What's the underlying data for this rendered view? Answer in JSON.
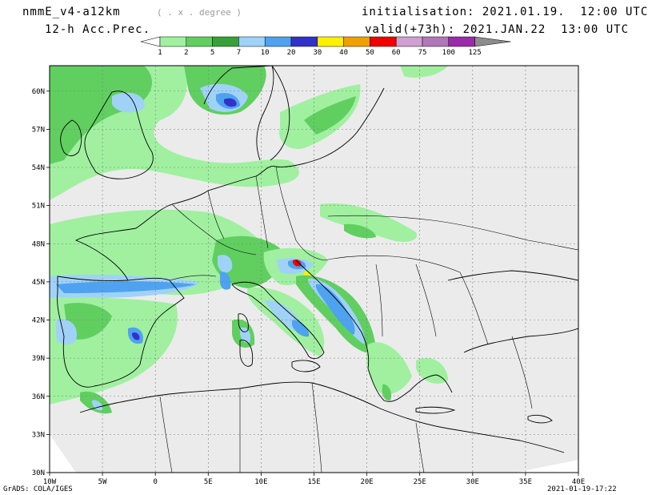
{
  "header": {
    "model": "nmmE_v4-a12km",
    "units": "( . x . degree )",
    "init": "initialisation: 2021.01.19.  12:00 UTC",
    "product": "12-h Acc.Prec.",
    "valid": "valid(+73h): 2021.JAN.22  13:00 UTC"
  },
  "footer": {
    "left": "GrADS: COLA/IGES",
    "right": "2021-01-19-17:22"
  },
  "colorbar": {
    "levels": [
      "1",
      "2",
      "5",
      "7",
      "10",
      "20",
      "30",
      "40",
      "50",
      "60",
      "75",
      "100",
      "125"
    ],
    "colors": [
      "#a0f0a0",
      "#60cf60",
      "#38a038",
      "#a0d2f8",
      "#4ea2f0",
      "#3232c8",
      "#fff000",
      "#f0a000",
      "#f00000",
      "#d0a0d0",
      "#b078b8",
      "#9a2ca8",
      "#8c8c8c"
    ]
  },
  "axes": {
    "lon_labels": [
      "10W",
      "5W",
      "0",
      "5E",
      "10E",
      "15E",
      "20E",
      "25E",
      "30E",
      "35E",
      "40E"
    ],
    "lat_labels": [
      "30N",
      "33N",
      "36N",
      "39N",
      "42N",
      "45N",
      "48N",
      "51N",
      "54N",
      "57N",
      "60N"
    ]
  }
}
